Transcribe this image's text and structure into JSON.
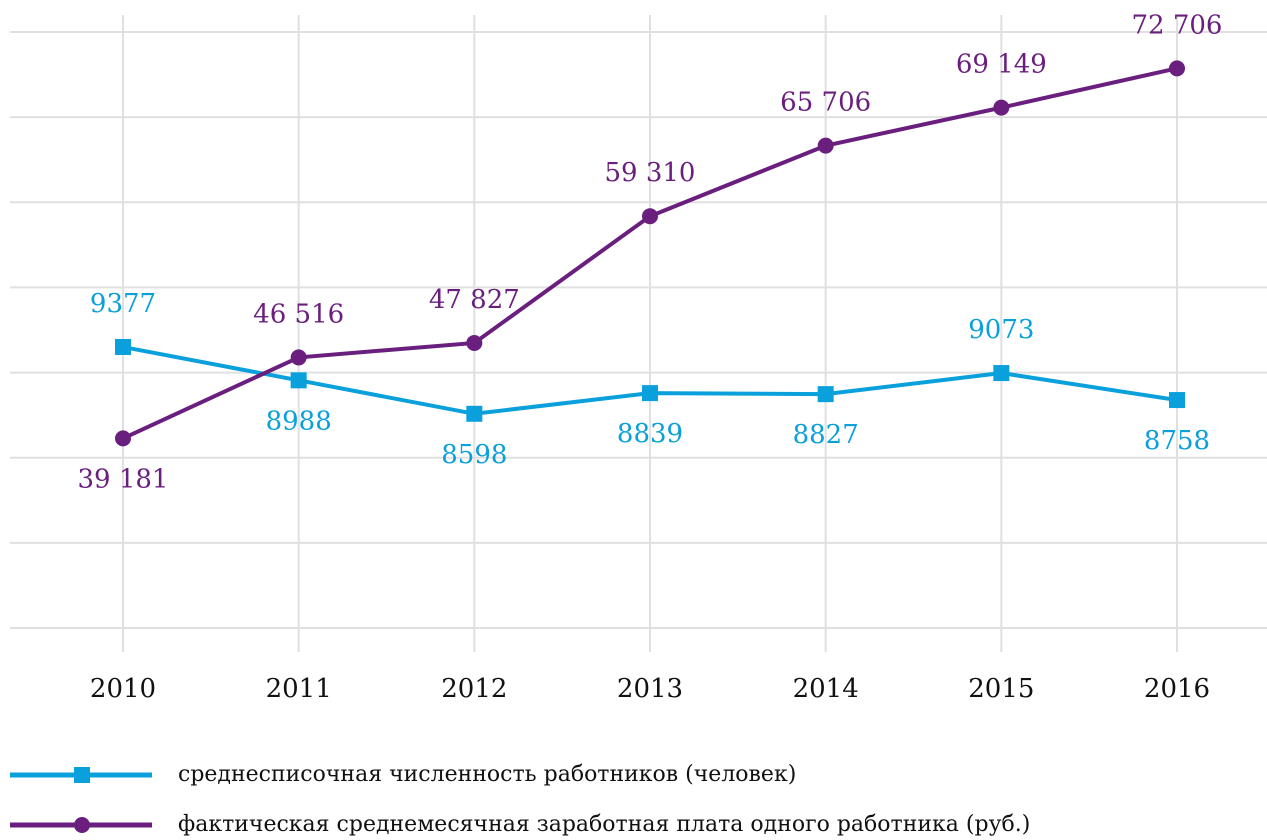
{
  "chart_data": {
    "type": "line",
    "categories": [
      "2010",
      "2011",
      "2012",
      "2013",
      "2014",
      "2015",
      "2016"
    ],
    "series": [
      {
        "name": "среднесписочная численность работников (человек)",
        "color": "#0aa0dc",
        "marker": "square",
        "values": [
          9377,
          8988,
          8598,
          8839,
          8827,
          9073,
          8758
        ]
      },
      {
        "name": "фактическая среднемесячная заработная плата одного работника (руб.)",
        "color": "#6a1f7f",
        "marker": "circle",
        "axis": "y2",
        "values": [
          39181,
          46516,
          47827,
          59310,
          65706,
          69149,
          72706
        ],
        "value_labels": [
          "39 181",
          "46 516",
          "47 827",
          "59 310",
          "65 706",
          "69 149",
          "72 706"
        ]
      }
    ],
    "ylim": [
      6100,
      13050
    ],
    "y2lim": [
      22000,
      76000
    ],
    "grid": true
  }
}
